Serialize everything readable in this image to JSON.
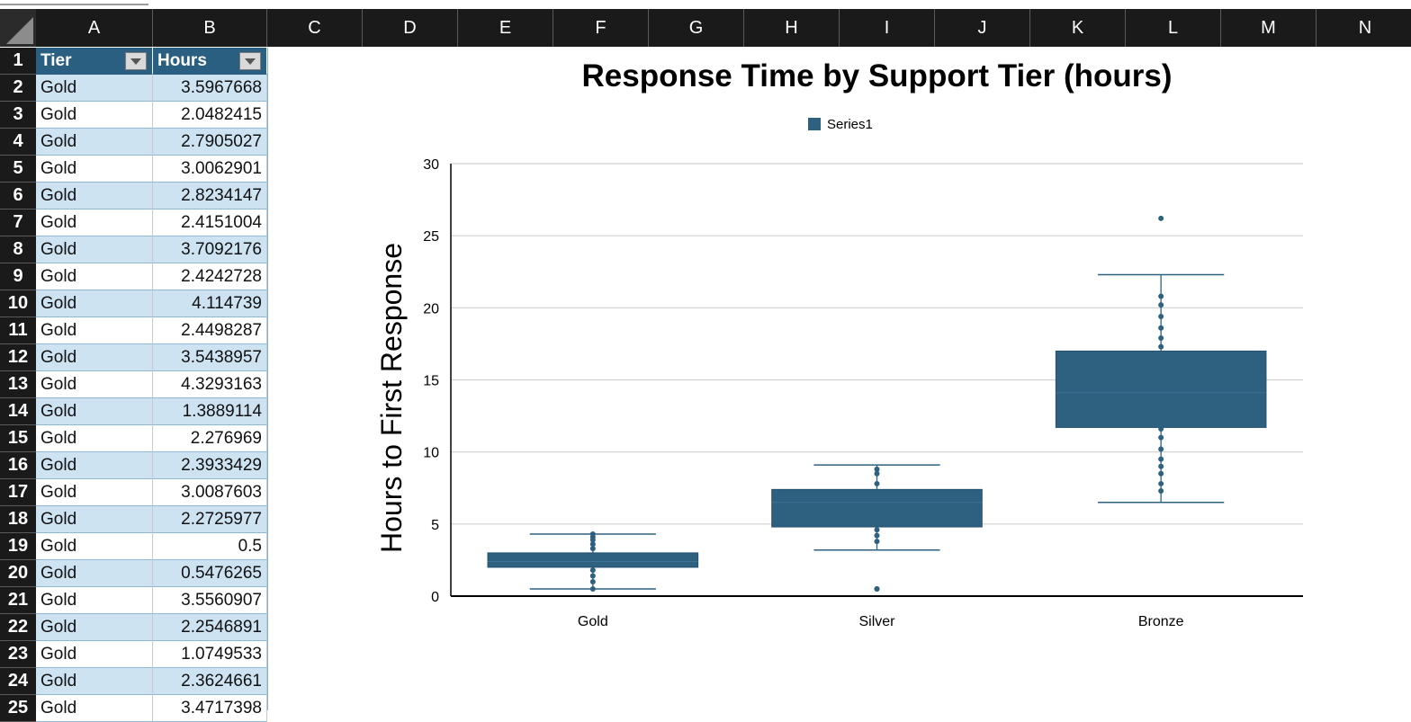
{
  "spreadsheet": {
    "columns": [
      "A",
      "B",
      "C",
      "D",
      "E",
      "F",
      "G",
      "H",
      "I",
      "J",
      "K",
      "L",
      "M",
      "N"
    ],
    "table_headers": [
      "Tier",
      "Hours"
    ],
    "rows": [
      {
        "num": "1"
      },
      {
        "num": "2",
        "tier": "Gold",
        "hours": "3.5967668"
      },
      {
        "num": "3",
        "tier": "Gold",
        "hours": "2.0482415"
      },
      {
        "num": "4",
        "tier": "Gold",
        "hours": "2.7905027"
      },
      {
        "num": "5",
        "tier": "Gold",
        "hours": "3.0062901"
      },
      {
        "num": "6",
        "tier": "Gold",
        "hours": "2.8234147"
      },
      {
        "num": "7",
        "tier": "Gold",
        "hours": "2.4151004"
      },
      {
        "num": "8",
        "tier": "Gold",
        "hours": "3.7092176"
      },
      {
        "num": "9",
        "tier": "Gold",
        "hours": "2.4242728"
      },
      {
        "num": "10",
        "tier": "Gold",
        "hours": "4.114739"
      },
      {
        "num": "11",
        "tier": "Gold",
        "hours": "2.4498287"
      },
      {
        "num": "12",
        "tier": "Gold",
        "hours": "3.5438957"
      },
      {
        "num": "13",
        "tier": "Gold",
        "hours": "4.3293163"
      },
      {
        "num": "14",
        "tier": "Gold",
        "hours": "1.3889114"
      },
      {
        "num": "15",
        "tier": "Gold",
        "hours": "2.276969"
      },
      {
        "num": "16",
        "tier": "Gold",
        "hours": "2.3933429"
      },
      {
        "num": "17",
        "tier": "Gold",
        "hours": "3.0087603"
      },
      {
        "num": "18",
        "tier": "Gold",
        "hours": "2.2725977"
      },
      {
        "num": "19",
        "tier": "Gold",
        "hours": "0.5"
      },
      {
        "num": "20",
        "tier": "Gold",
        "hours": "0.5476265"
      },
      {
        "num": "21",
        "tier": "Gold",
        "hours": "3.5560907"
      },
      {
        "num": "22",
        "tier": "Gold",
        "hours": "2.2546891"
      },
      {
        "num": "23",
        "tier": "Gold",
        "hours": "1.0749533"
      },
      {
        "num": "24",
        "tier": "Gold",
        "hours": "2.3624661"
      },
      {
        "num": "25",
        "tier": "Gold",
        "hours": "3.4717398"
      }
    ],
    "filter_icon": "dropdown-arrow-icon"
  },
  "colors": {
    "header_bg": "#1a1a1a",
    "table_header": "#2b5f82",
    "band": "#cde3f2",
    "series": "#2e6080"
  },
  "chart_data": {
    "type": "box",
    "title": "Response Time by Support Tier (hours)",
    "ylabel": "Hours to First Response",
    "xlabel": "",
    "categories": [
      "Gold",
      "Silver",
      "Bronze"
    ],
    "legend": {
      "position": "top",
      "entries": [
        "Series1"
      ]
    },
    "ylim": [
      0,
      30
    ],
    "yticks": [
      0,
      5,
      10,
      15,
      20,
      25,
      30
    ],
    "grid": true,
    "series": [
      {
        "name": "Series1",
        "boxes": [
          {
            "category": "Gold",
            "min": 0.5,
            "q1": 2.0,
            "median": 2.4,
            "q3": 3.0,
            "max": 4.3,
            "points": [
              0.5,
              1.0,
              1.4,
              1.8,
              3.3,
              3.6,
              3.9,
              4.1,
              4.3
            ]
          },
          {
            "category": "Silver",
            "min": 3.2,
            "q1": 4.8,
            "median": 6.5,
            "q3": 7.4,
            "max": 9.1,
            "points": [
              0.5,
              3.8,
              4.2,
              4.6,
              7.8,
              8.5,
              8.8
            ],
            "outliers": [
              0.5
            ]
          },
          {
            "category": "Bronze",
            "min": 6.5,
            "q1": 11.7,
            "median": 14.1,
            "q3": 17.0,
            "max": 22.3,
            "points": [
              7.3,
              7.8,
              8.5,
              9.0,
              9.5,
              10.2,
              11.0,
              11.6,
              17.3,
              17.9,
              18.6,
              19.4,
              20.2,
              20.8
            ],
            "outliers": [
              26.2
            ]
          }
        ]
      }
    ]
  }
}
